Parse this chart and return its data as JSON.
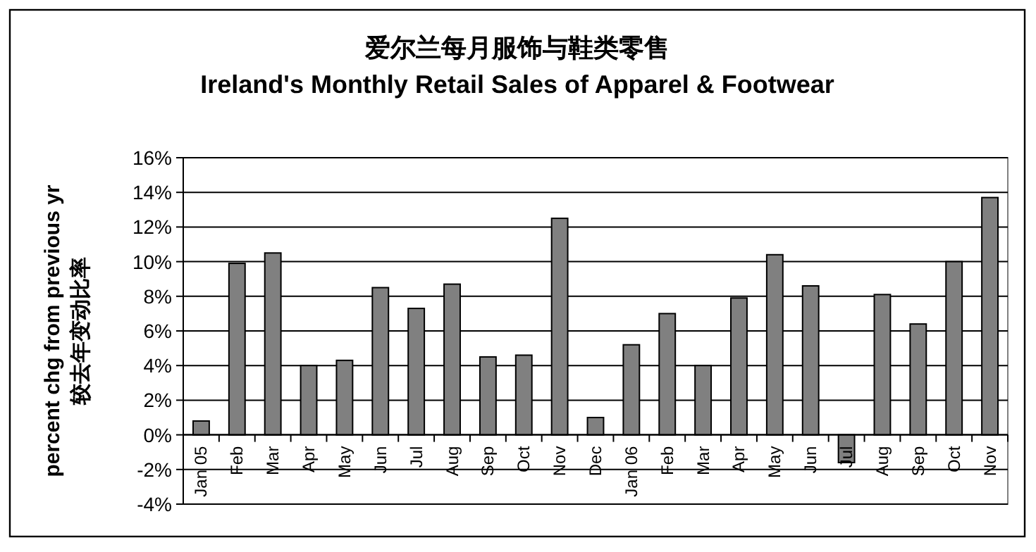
{
  "chart_data": {
    "type": "bar",
    "title": "爱尔兰每月服饰与鞋类零售",
    "subtitle": "Ireland's Monthly Retail Sales of Apparel & Footwear",
    "ylabel": "percent chg from previous yr\n较去年变动比率",
    "categories": [
      "Jan 05",
      "Feb",
      "Mar",
      "Apr",
      "May",
      "Jun",
      "Jul",
      "Aug",
      "Sep",
      "Oct",
      "Nov",
      "Dec",
      "Jan 06",
      "Feb",
      "Mar",
      "Apr",
      "May",
      "Jun",
      "Jul",
      "Aug",
      "Sep",
      "Oct",
      "Nov"
    ],
    "values": [
      0.8,
      9.9,
      10.5,
      4.0,
      4.3,
      8.5,
      7.3,
      8.7,
      4.5,
      4.6,
      12.5,
      1.0,
      5.2,
      7.0,
      4.0,
      7.9,
      10.4,
      8.6,
      -1.6,
      8.1,
      6.4,
      10.0,
      13.7
    ],
    "color": "#808080",
    "ylim": [
      -4,
      16
    ],
    "yticks": [
      {
        "value": -4,
        "label": "-4%"
      },
      {
        "value": -2,
        "label": "-2%"
      },
      {
        "value": 0,
        "label": "0%"
      },
      {
        "value": 2,
        "label": "2%"
      },
      {
        "value": 4,
        "label": "4%"
      },
      {
        "value": 6,
        "label": "6%"
      },
      {
        "value": 8,
        "label": "8%"
      },
      {
        "value": 10,
        "label": "10%"
      },
      {
        "value": 12,
        "label": "12%"
      },
      {
        "value": 14,
        "label": "14%"
      },
      {
        "value": 16,
        "label": "16%"
      }
    ],
    "grid": "y"
  }
}
